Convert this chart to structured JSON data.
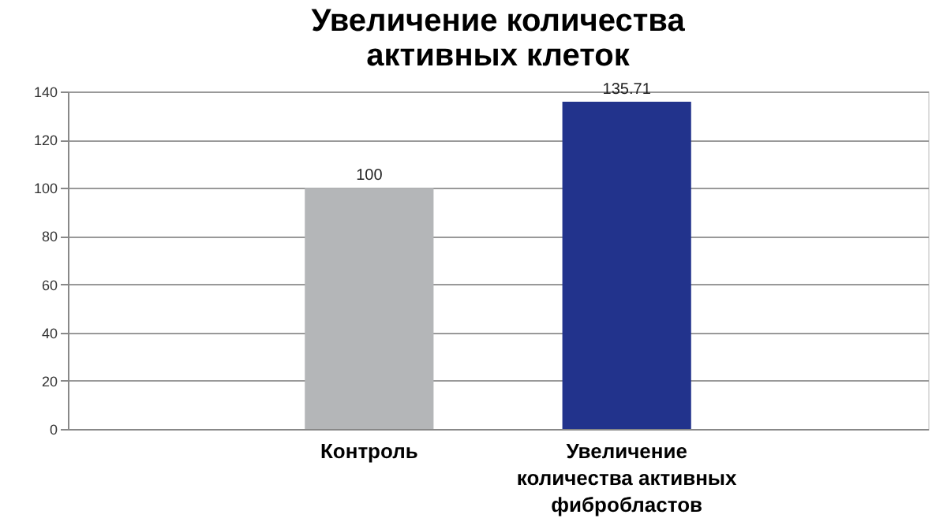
{
  "chart_data": {
    "type": "bar",
    "title": "Увеличение количества\nактивных клеток",
    "categories": [
      "Контроль",
      "Увеличение\nколичества активных\nфибробластов"
    ],
    "values": [
      100,
      135.71
    ],
    "colors": [
      "#b4b6b8",
      "#22338c"
    ],
    "value_labels": [
      "100",
      "135.71"
    ],
    "ylim": [
      0,
      140
    ],
    "yticks": [
      0,
      20,
      40,
      60,
      80,
      100,
      120,
      140
    ],
    "grid": "y"
  }
}
